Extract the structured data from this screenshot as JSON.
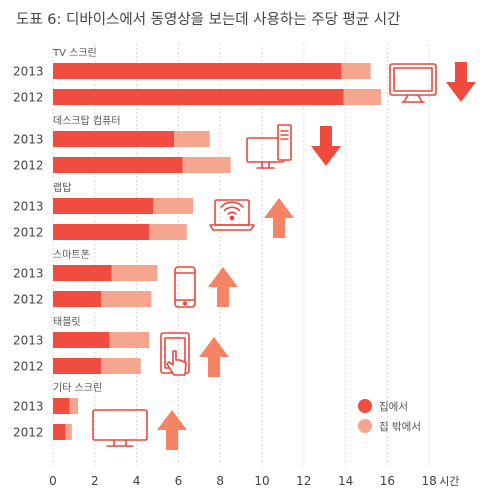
{
  "page": {
    "title": "도표 6: 디바이스에서 동영상을 보는데 사용하는 주당 평균 시간"
  },
  "chart_data": {
    "type": "bar",
    "orientation": "horizontal",
    "stacked": true,
    "title": "도표 6: 디바이스에서 동영상을 보는데 사용하는 주당 평균 시간",
    "xlabel": "시간",
    "xlim": [
      0,
      18
    ],
    "xticks": [
      0,
      2,
      4,
      6,
      8,
      10,
      12,
      14,
      16,
      18
    ],
    "grid": true,
    "legend_position": "bottom-right",
    "series": [
      {
        "name": "집에서",
        "color": "#f04d40"
      },
      {
        "name": "집 밖에서",
        "color": "#f6a58f"
      }
    ],
    "groups": [
      {
        "category": "TV 스크린",
        "icon": "tv-icon",
        "trend": "down",
        "rows": [
          {
            "year": "2013",
            "home": 13.8,
            "away": 1.4
          },
          {
            "year": "2012",
            "home": 13.9,
            "away": 1.8
          }
        ]
      },
      {
        "category": "데스크탑 컴퓨터",
        "icon": "desktop-computer-icon",
        "trend": "down",
        "rows": [
          {
            "year": "2013",
            "home": 5.8,
            "away": 1.7
          },
          {
            "year": "2012",
            "home": 6.2,
            "away": 2.3
          }
        ]
      },
      {
        "category": "랩탑",
        "icon": "laptop-icon",
        "trend": "up",
        "rows": [
          {
            "year": "2013",
            "home": 4.8,
            "away": 1.9
          },
          {
            "year": "2012",
            "home": 4.6,
            "away": 1.8
          }
        ]
      },
      {
        "category": "스마트폰",
        "icon": "smartphone-icon",
        "trend": "up",
        "rows": [
          {
            "year": "2013",
            "home": 2.8,
            "away": 2.2
          },
          {
            "year": "2012",
            "home": 2.3,
            "away": 2.4
          }
        ]
      },
      {
        "category": "태블릿",
        "icon": "tablet-icon",
        "trend": "up",
        "rows": [
          {
            "year": "2013",
            "home": 2.7,
            "away": 1.9
          },
          {
            "year": "2012",
            "home": 2.3,
            "away": 1.9
          }
        ]
      },
      {
        "category": "기타 스크린",
        "icon": "monitor-icon",
        "trend": "up",
        "rows": [
          {
            "year": "2013",
            "home": 0.8,
            "away": 0.4
          },
          {
            "year": "2012",
            "home": 0.6,
            "away": 0.3
          }
        ]
      }
    ]
  },
  "legend": {
    "home": "집에서",
    "away": "집 밖에서"
  },
  "colors": {
    "home": "#f04d40",
    "away": "#f6a58f",
    "arrow_down": "#ef4a3e",
    "arrow_up": "#f58466",
    "icon_stroke": "#e8473d",
    "grid": "#d9d9d9"
  }
}
